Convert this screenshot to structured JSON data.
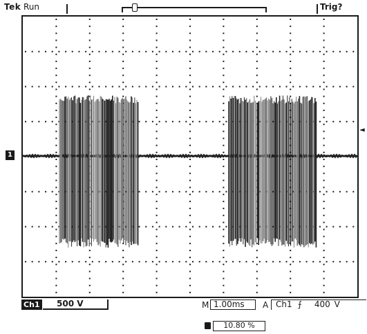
{
  "status": {
    "brand": "Tek",
    "acq_state": "Run",
    "trigger_state": "Trig?"
  },
  "markers": {
    "trigger_position": "T",
    "ch1_ground": "1",
    "trigger_level": "◄"
  },
  "bottom": {
    "channel_badge": "Ch1",
    "channel_scale": "500 V",
    "timebase_label": "M",
    "timebase_value": "1.00ms",
    "trigger_label": "A",
    "trigger_source": "Ch1",
    "trigger_edge": "⨍",
    "trigger_level": "400 V",
    "horizontal_position": "10.80 %"
  },
  "colors": {
    "ink": "#1a1a1a",
    "trace": "#222222",
    "trace_light": "#7a7a7a",
    "background": "#ffffff"
  }
}
